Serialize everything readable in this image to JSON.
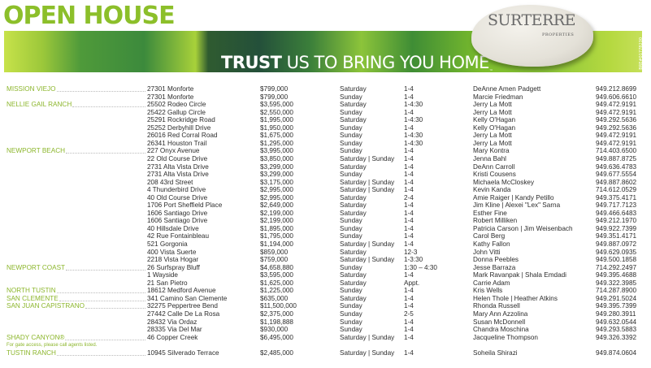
{
  "header": {
    "title": "OPEN HOUSE",
    "tagline_bold": "TRUST",
    "tagline_rest": " US TO BRING YOU HOME",
    "tm": "™",
    "logo": "SURTERRE",
    "logo_sub": "PROPERTIES",
    "license": "BRE#01778230",
    "colors": {
      "accent": "#8cb62c"
    }
  },
  "listings": [
    {
      "area": "MISSION VIEJO",
      "address": "27301 Monforte",
      "price": "$799,000",
      "day": "Saturday",
      "time": "1-4",
      "agent": "DeAnne Amen Padgett",
      "phone": "949.212.8699"
    },
    {
      "area": "",
      "address": "27301 Monforte",
      "price": "$799,000",
      "day": "Sunday",
      "time": "1-4",
      "agent": "Marcie Friedman",
      "phone": "949.606.6610"
    },
    {
      "area": "NELLIE GAIL RANCH",
      "address": "25502 Rodeo Circle",
      "price": "$3,595,000",
      "day": "Saturday",
      "time": "1-4:30",
      "agent": "Jerry La Mott",
      "phone": "949.472.9191"
    },
    {
      "area": "",
      "address": "25422 Gallup Circle",
      "price": "$2,550,000",
      "day": "Sunday",
      "time": "1-4",
      "agent": "Jerry La Mott",
      "phone": "949.472.9191"
    },
    {
      "area": "",
      "address": "25291 Rockridge Road",
      "price": "$1,995,000",
      "day": "Saturday",
      "time": "1-4:30",
      "agent": "Kelly O'Hagan",
      "phone": "949.292.5636"
    },
    {
      "area": "",
      "address": "25252 Derbyhill Drive",
      "price": "$1,950,000",
      "day": "Sunday",
      "time": "1-4",
      "agent": "Kelly O'Hagan",
      "phone": "949.292.5636"
    },
    {
      "area": "",
      "address": "26016 Red Corral Road",
      "price": "$1,675,000",
      "day": "Sunday",
      "time": "1-4:30",
      "agent": "Jerry La Mott",
      "phone": "949.472.9191"
    },
    {
      "area": "",
      "address": "26341 Houston Trail",
      "price": "$1,295,000",
      "day": "Sunday",
      "time": "1-4:30",
      "agent": "Jerry La Mott",
      "phone": "949.472.9191"
    },
    {
      "area": "NEWPORT BEACH",
      "address": "227 Onyx Avenue",
      "price": "$3,995,000",
      "day": "Sunday",
      "time": "1-4",
      "agent": "Mary Kontra",
      "phone": "714.403.6500"
    },
    {
      "area": "",
      "address": "22 Old Course Drive",
      "price": "$3,850,000",
      "day": "Saturday | Sunday",
      "time": "1-4",
      "agent": "Jenna Bahl",
      "phone": "949.887.8725"
    },
    {
      "area": "",
      "address": "2731 Alta Vista Drive",
      "price": "$3,299,000",
      "day": "Saturday",
      "time": "1-4",
      "agent": "DeAnn Carroll",
      "phone": "949.636.4783"
    },
    {
      "area": "",
      "address": "2731 Alta Vista Drive",
      "price": "$3,299,000",
      "day": "Sunday",
      "time": "1-4",
      "agent": "Kristi Cousens",
      "phone": "949.677.5554"
    },
    {
      "area": "",
      "address": "208 43rd Street",
      "price": "$3,175,000",
      "day": "Saturday | Sunday",
      "time": "1-4",
      "agent": "Michaela McCloskey",
      "phone": "949.887.8602"
    },
    {
      "area": "",
      "address": "4 Thunderbird Drive",
      "price": "$2,995,000",
      "day": "Saturday | Sunday",
      "time": "1-4",
      "agent": "Kevin Kanda",
      "phone": "714.612.0529"
    },
    {
      "area": "",
      "address": "40 Old Course Drive",
      "price": "$2,995,000",
      "day": "Saturday",
      "time": "2-4",
      "agent": "Amie Raiger | Kandy Petillo",
      "phone": "949.375.4171"
    },
    {
      "area": "",
      "address": "1706 Port Sheffield Place",
      "price": "$2,649,000",
      "day": "Saturday",
      "time": "1-4",
      "agent": "Jim Kline | Alexei \"Lex\" Sarna",
      "phone": "949.717.7123"
    },
    {
      "area": "",
      "address": "1606 Santiago Drive",
      "price": "$2,199,000",
      "day": "Saturday",
      "time": "1-4",
      "agent": "Esther Fine",
      "phone": "949.466.6483"
    },
    {
      "area": "",
      "address": "1606 Santiago Drive",
      "price": "$2,199,000",
      "day": "Sunday",
      "time": "1-4",
      "agent": "Robert Milliken",
      "phone": "949.212.1970"
    },
    {
      "area": "",
      "address": "40 Hillsdale Drive",
      "price": "$1,895,000",
      "day": "Sunday",
      "time": "1-4",
      "agent": "Patricia Carson | Jim Weisenbach",
      "phone": "949.922.7399"
    },
    {
      "area": "",
      "address": "42 Rue Fontainbleau",
      "price": "$1,795,000",
      "day": "Sunday",
      "time": "1-4",
      "agent": "Carol Berg",
      "phone": "949.351.4171"
    },
    {
      "area": "",
      "address": "521 Gorgonia",
      "price": "$1,194,000",
      "day": "Saturday | Sunday",
      "time": "1-4",
      "agent": "Kathy Fallon",
      "phone": "949.887.0972"
    },
    {
      "area": "",
      "address": "400 Vista Suerte",
      "price": "$859,000",
      "day": "Saturday",
      "time": "12-3",
      "agent": "John Vitti",
      "phone": "949.629.0935"
    },
    {
      "area": "",
      "address": "2218 Vista Hogar",
      "price": "$759,000",
      "day": "Saturday | Sunday",
      "time": "1-3:30",
      "agent": "Donna Peebles",
      "phone": "949.500.1858"
    },
    {
      "area": "NEWPORT COAST",
      "address": "26 Surfspray Bluff",
      "price": "$4,658,880",
      "day": "Sunday",
      "time": "1:30 – 4:30",
      "agent": "Jesse Barraza",
      "phone": "714.292.2497"
    },
    {
      "area": "",
      "address": "1 Wayside",
      "price": "$3,595,000",
      "day": "Saturday",
      "time": "1-4",
      "agent": "Mark Ravanpak | Shala Emdadi",
      "phone": "949.395.4688"
    },
    {
      "area": "",
      "address": "21 San Pietro",
      "price": "$1,625,000",
      "day": "Saturday",
      "time": "Appt.",
      "agent": "Carrie Adam",
      "phone": "949.322.3985"
    },
    {
      "area": "NORTH TUSTIN",
      "address": "18612 Medford Avenue",
      "price": "$1,225,000",
      "day": "Sunday",
      "time": "1-4",
      "agent": "Kris Wells",
      "phone": "714.287.8900"
    },
    {
      "area": "SAN CLEMENTE",
      "address": "341 Camino San Clemente",
      "price": "$635,000",
      "day": "Saturday",
      "time": "1-4",
      "agent": "Helen Thole | Heather Atkins",
      "phone": "949.291.5024"
    },
    {
      "area": "SAN JUAN CAPISTRANO",
      "address": "32275 Peppertree Bend",
      "price": "$11,500,000",
      "day": "Sunday",
      "time": "1-4",
      "agent": "Rhonda Russell",
      "phone": "949.395.7399"
    },
    {
      "area": "",
      "address": "27442 Calle De La Rosa",
      "price": "$2,375,000",
      "day": "Sunday",
      "time": "2-5",
      "agent": "Mary Ann Azzolina",
      "phone": "949.280.3911"
    },
    {
      "area": "",
      "address": "28432 Via Ordaz",
      "price": "$1,198,888",
      "day": "Sunday",
      "time": "1-4",
      "agent": "Susan McDonnell",
      "phone": "949.632.0544"
    },
    {
      "area": "",
      "address": "28335 Via Del Mar",
      "price": "$930,000",
      "day": "Sunday",
      "time": "1-4",
      "agent": "Chandra Moschina",
      "phone": "949.293.5883"
    },
    {
      "area": "SHADY CANYON®",
      "address": "46 Copper Creek",
      "price": "$6,495,000",
      "day": "Saturday | Sunday",
      "time": "1-4",
      "agent": "Jacqueline Thompson",
      "phone": "949.326.3392"
    },
    {
      "area": "TUSTIN RANCH",
      "address": "10945 Silverado Terrace",
      "price": "$2,485,000",
      "day": "Saturday | Sunday",
      "time": "1-4",
      "agent": "Soheila Shirazi",
      "phone": "949.874.0604"
    }
  ],
  "gate_note": "For gate access, please call agents listed."
}
